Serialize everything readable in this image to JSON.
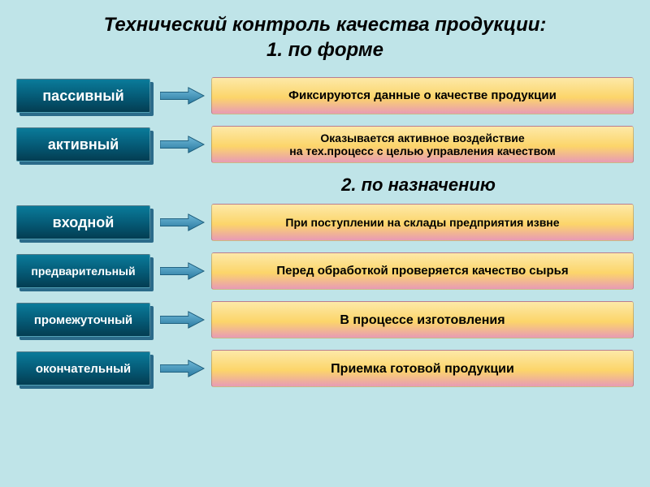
{
  "page": {
    "background_color": "#bfe4e8",
    "title": "Технический контроль качества продукции:\n1. по форме",
    "title_fontsize": 24,
    "title_color": "#000000",
    "subtitle": "2. по назначению",
    "subtitle_fontsize": 22
  },
  "label_style": {
    "gradient_top": "#0a7b9a",
    "gradient_mid": "#055c78",
    "gradient_bottom": "#033d52",
    "shadow_color": "#2b6b8a",
    "text_color": "#ffffff"
  },
  "desc_style": {
    "gradient_top": "#fde9a8",
    "gradient_mid": "#fcd56a",
    "gradient_bottom": "#e89bb5",
    "text_color": "#000000"
  },
  "arrow_style": {
    "fill_top": "#6fb8d8",
    "fill_bottom": "#2a7aa0",
    "stroke": "#1a5a78"
  },
  "group1": [
    {
      "label": "пассивный",
      "label_fontsize": 18,
      "desc": "Фиксируются данные о качестве продукции",
      "desc_fontsize": 15
    },
    {
      "label": "активный",
      "label_fontsize": 18,
      "desc": "Оказывается активное воздействие\nна тех.процесс с целью управления качеством",
      "desc_fontsize": 14
    }
  ],
  "group2": [
    {
      "label": "входной",
      "label_fontsize": 18,
      "desc": "При поступлении на склады предприятия извне",
      "desc_fontsize": 14
    },
    {
      "label": "предварительный",
      "label_fontsize": 14,
      "desc": "Перед обработкой проверяется качество сырья",
      "desc_fontsize": 15
    },
    {
      "label": "промежуточный",
      "label_fontsize": 15,
      "desc": "В процессе изготовления",
      "desc_fontsize": 16
    },
    {
      "label": "окончательный",
      "label_fontsize": 15,
      "desc": "Приемка готовой продукции",
      "desc_fontsize": 16
    }
  ]
}
